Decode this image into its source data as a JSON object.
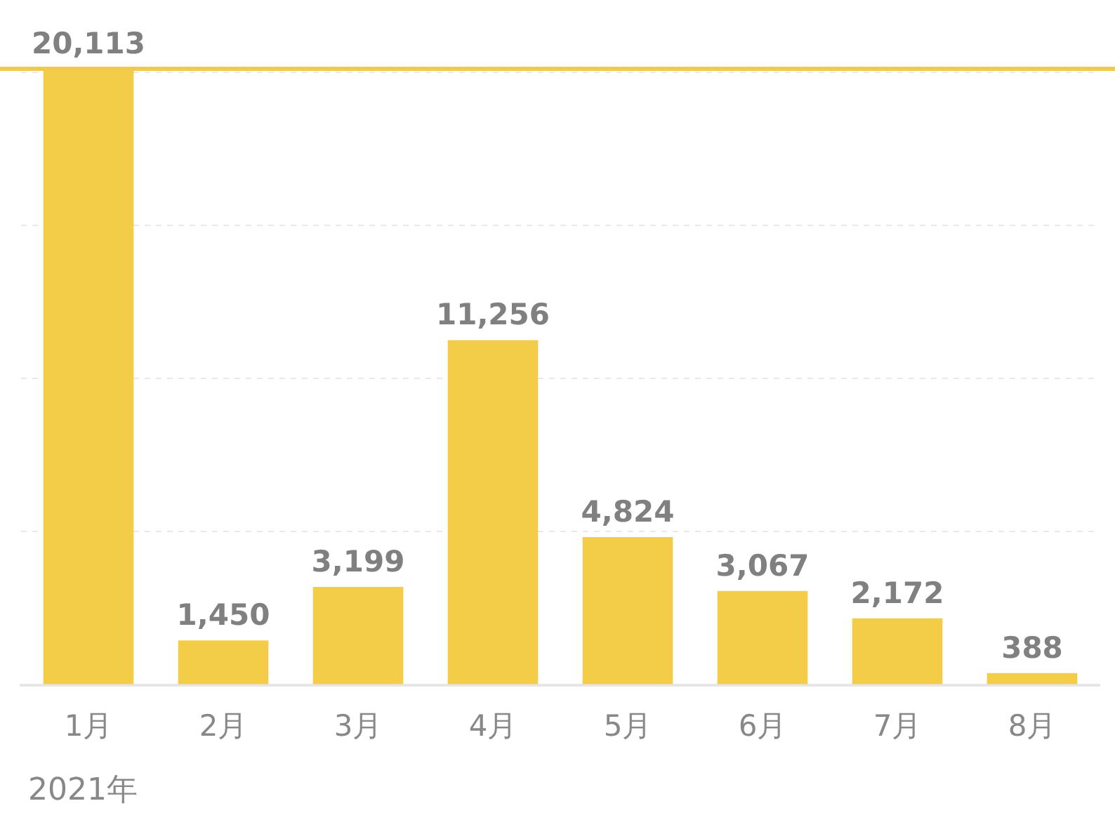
{
  "chart_data": {
    "type": "bar",
    "categories": [
      "1月",
      "2月",
      "3月",
      "4月",
      "5月",
      "6月",
      "7月",
      "8月"
    ],
    "values": [
      20113,
      1450,
      3199,
      11256,
      4824,
      3067,
      2172,
      388
    ],
    "color": "#f4cd48",
    "ylim": [
      0,
      20113
    ],
    "yticks": [
      {
        "value": 0,
        "label": null
      },
      {
        "value": 5000,
        "label": null
      },
      {
        "value": 10000,
        "label": null
      },
      {
        "value": 15000,
        "label": null
      },
      {
        "value": 20000,
        "label": null
      }
    ],
    "tick_labels": "x",
    "grid": "y",
    "data_labels": true,
    "value_labels": [
      "20,113",
      "1,450",
      "3,199",
      "11,256",
      "4,824",
      "3,067",
      "2,172",
      "388"
    ],
    "ref_lines": [
      {
        "axis": "y",
        "value": 20113,
        "color": "#f2c94c"
      }
    ],
    "annotations": [
      "2021年"
    ],
    "legend": false
  }
}
